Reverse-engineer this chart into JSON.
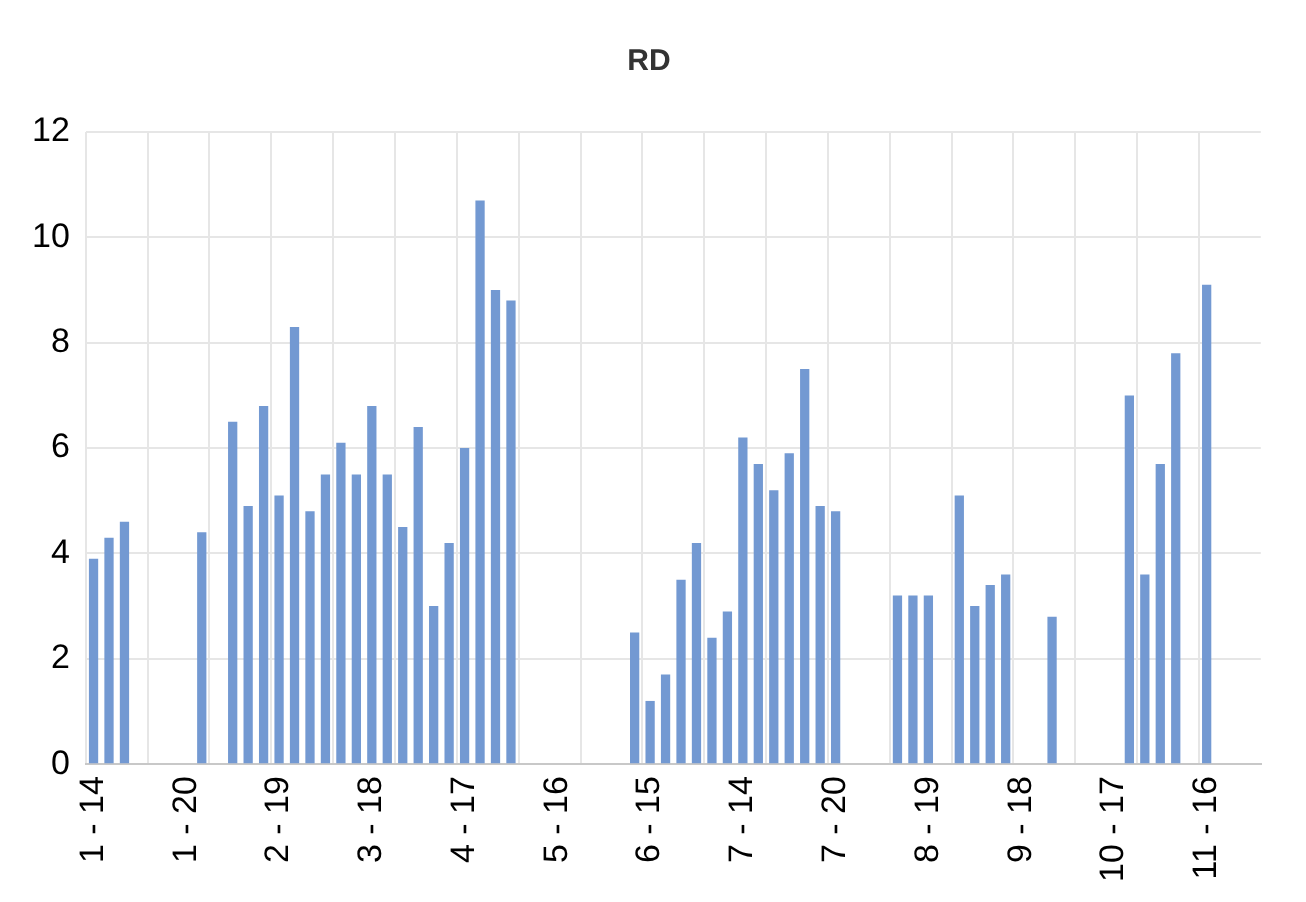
{
  "chart_data": {
    "type": "bar",
    "title": "RD",
    "categories": [
      "1 - 14",
      null,
      null,
      null,
      null,
      null,
      "1 - 20",
      null,
      null,
      null,
      null,
      null,
      "2 - 19",
      null,
      null,
      null,
      null,
      null,
      "3 - 18",
      null,
      null,
      null,
      null,
      null,
      "4 - 17",
      null,
      null,
      null,
      null,
      null,
      "5 - 16",
      null,
      null,
      null,
      null,
      null,
      "6 - 15",
      null,
      null,
      null,
      null,
      null,
      "7 - 14",
      null,
      null,
      null,
      null,
      null,
      "7 - 20",
      null,
      null,
      null,
      null,
      null,
      "8 - 19",
      null,
      null,
      null,
      null,
      null,
      "9 - 18",
      null,
      null,
      null,
      null,
      null,
      "10 - 17",
      null,
      null,
      null,
      null,
      null,
      "11 - 16",
      null,
      null,
      null
    ],
    "values": [
      3.9,
      4.3,
      4.6,
      null,
      null,
      null,
      null,
      4.4,
      null,
      6.5,
      4.9,
      6.8,
      5.1,
      8.3,
      4.8,
      5.5,
      6.1,
      5.5,
      6.8,
      5.5,
      4.5,
      6.4,
      3.0,
      4.2,
      6.0,
      10.7,
      9.0,
      8.8,
      null,
      null,
      null,
      null,
      null,
      null,
      null,
      2.5,
      1.2,
      1.7,
      3.5,
      4.2,
      2.4,
      2.9,
      6.2,
      5.7,
      5.2,
      5.9,
      7.5,
      4.9,
      4.8,
      null,
      null,
      null,
      3.2,
      3.2,
      3.2,
      null,
      5.1,
      3.0,
      3.4,
      3.6,
      null,
      null,
      2.8,
      null,
      null,
      null,
      null,
      7.0,
      3.6,
      5.7,
      7.8,
      null,
      9.1,
      null,
      null,
      null
    ],
    "color": "#7399d2",
    "ylim": [
      0,
      12
    ],
    "yticks": [
      0,
      2,
      4,
      6,
      8,
      10,
      12
    ],
    "grid": true,
    "legend": false
  }
}
